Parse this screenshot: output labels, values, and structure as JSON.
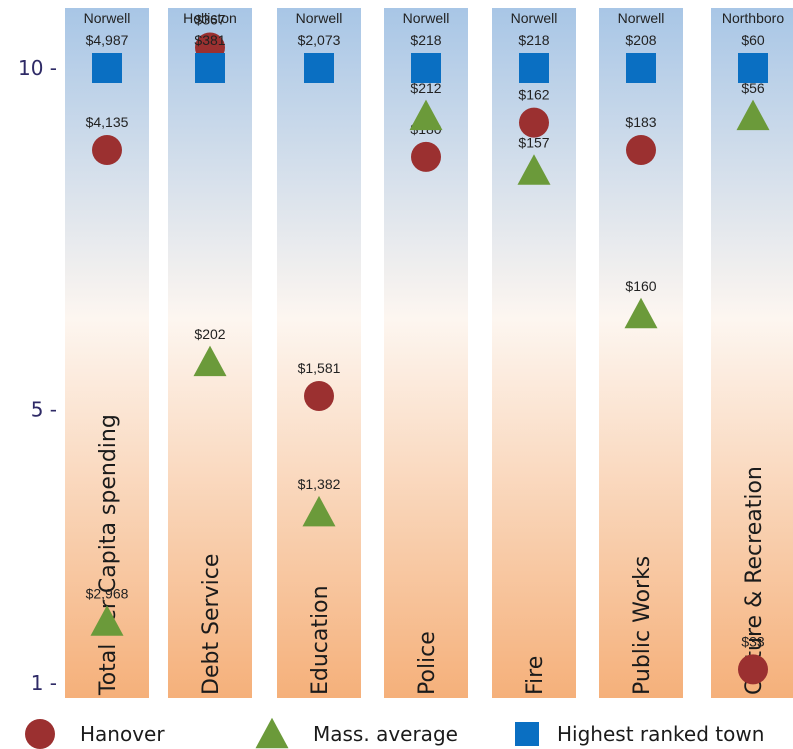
{
  "chart_data": {
    "type": "scatter",
    "title": "",
    "xlabel": "",
    "ylabel": "",
    "ylim": [
      1,
      10
    ],
    "yticks": [
      "10 -",
      "5 -",
      "1 -"
    ],
    "grid": false,
    "legend_position": "bottom",
    "categories": [
      "Total per Capita spending",
      "Debt Service",
      "Education",
      "Police",
      "Fire",
      "Public Works",
      "Culture  & Recreation"
    ],
    "highest_town": [
      "Norwell",
      "Holliston",
      "Norwell",
      "Norwell",
      "Norwell",
      "Norwell",
      "Northboro"
    ],
    "series": [
      {
        "name": "Hanover",
        "marker": "circle",
        "color": "#9b3030",
        "rank": [
          8.8,
          10.3,
          5.2,
          8.7,
          9.2,
          8.8,
          1.2
        ],
        "labels": [
          "$4,135",
          "$367",
          "$1,581",
          "$180",
          "$162",
          "$183",
          "$33"
        ]
      },
      {
        "name": "Mass. average",
        "marker": "triangle",
        "color": "#6b9a3a",
        "rank": [
          1.9,
          5.7,
          3.5,
          9.3,
          8.5,
          6.4,
          9.3
        ],
        "labels": [
          "$2,968",
          "$202",
          "$1,382",
          "$212",
          "$157",
          "$160",
          "$56"
        ]
      },
      {
        "name": "Highest ranked town",
        "marker": "square",
        "color": "#0a6fc2",
        "rank": [
          10,
          10,
          10,
          10,
          10,
          10,
          10
        ],
        "labels": [
          "$4,987",
          "$381",
          "$2,073",
          "$218",
          "$218",
          "$208",
          "$60"
        ]
      }
    ]
  },
  "colors": {
    "bar_top": "#a8c6e6",
    "bar_mid": "#fdf6f0",
    "bar_bottom": "#f5b07a",
    "axis_text": "#2e2a66"
  }
}
